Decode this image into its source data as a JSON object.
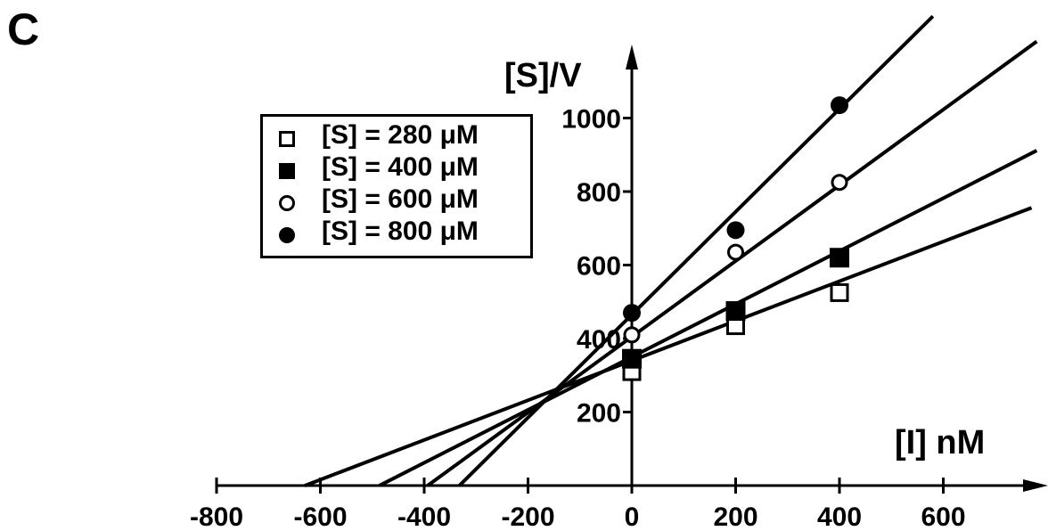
{
  "panel_label": "C",
  "chart_data": {
    "type": "scatter",
    "xlabel": "[I] nM",
    "ylabel": "[S]/V",
    "xlim": [
      -800,
      780
    ],
    "ylim": [
      0,
      1100
    ],
    "x_ticks": [
      -800,
      -600,
      -400,
      -200,
      0,
      200,
      400,
      600
    ],
    "y_ticks": [
      200,
      400,
      600,
      800,
      1000
    ],
    "legend_position": "upper-left",
    "series": [
      {
        "name": "[S] = 280 μM",
        "marker": "open-square",
        "x": [
          0,
          200,
          400
        ],
        "y": [
          310,
          435,
          525
        ],
        "fit_line": {
          "slope": 0.54,
          "intercept": 340,
          "x_start": -630,
          "x_end": 770
        }
      },
      {
        "name": "[S] = 400 μM",
        "marker": "filled-square",
        "x": [
          0,
          200,
          400
        ],
        "y": [
          345,
          475,
          620
        ],
        "fit_line": {
          "slope": 0.72,
          "intercept": 350,
          "x_start": -486,
          "x_end": 780
        }
      },
      {
        "name": "[S] = 600 μM",
        "marker": "open-circle",
        "x": [
          0,
          200,
          400
        ],
        "y": [
          410,
          635,
          825
        ],
        "fit_line": {
          "slope": 1.03,
          "intercept": 405,
          "x_start": -393,
          "x_end": 780
        }
      },
      {
        "name": "[S] = 800 μM",
        "marker": "filled-circle",
        "x": [
          0,
          200,
          400
        ],
        "y": [
          470,
          695,
          1035
        ],
        "fit_line": {
          "slope": 1.4,
          "intercept": 465,
          "x_start": -332,
          "x_end": 580
        }
      }
    ]
  }
}
